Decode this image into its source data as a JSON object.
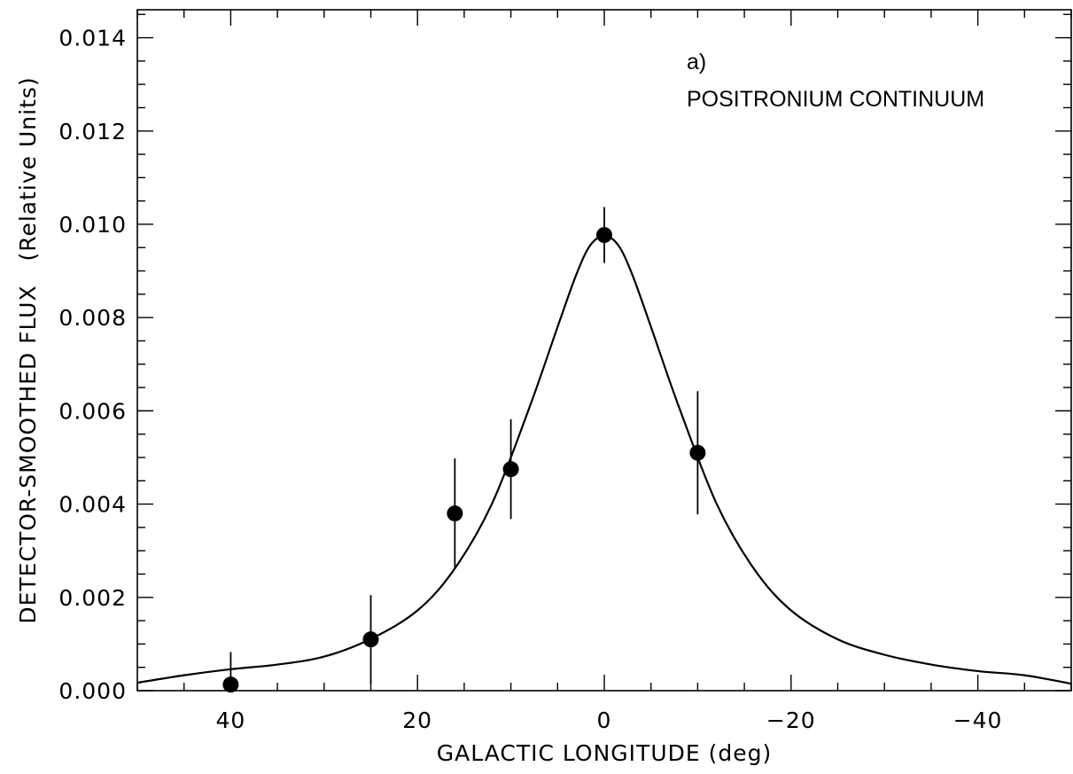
{
  "chart_data": {
    "type": "scatter",
    "panel_label": "a)",
    "title": "POSITRONIUM CONTINUUM",
    "xlabel": "GALACTIC LONGITUDE (deg)",
    "ylabel": "DETECTOR-SMOOTHED FLUX   (Relative Units)",
    "xlim": [
      50,
      -50
    ],
    "ylim": [
      0,
      0.0146
    ],
    "x_ticks": [
      40,
      20,
      0,
      -20,
      -40
    ],
    "x_tick_labels": [
      "40",
      "20",
      "0",
      "−20",
      "−40"
    ],
    "x_minor_step": 5,
    "y_ticks": [
      0.0,
      0.002,
      0.004,
      0.006,
      0.008,
      0.01,
      0.012,
      0.014
    ],
    "y_tick_labels": [
      "0.000",
      "0.002",
      "0.004",
      "0.006",
      "0.008",
      "0.010",
      "0.012",
      "0.014"
    ],
    "y_minor_step": 0.0005,
    "grid": false,
    "legend": "none",
    "series": [
      {
        "type": "errorbar",
        "x": [
          40,
          25,
          16,
          10,
          0,
          -10
        ],
        "y": [
          0.00013,
          0.0011,
          0.0038,
          0.00475,
          0.00977,
          0.0051
        ],
        "yerr": [
          0.0007,
          0.00095,
          0.00118,
          0.00107,
          0.0006,
          0.00132
        ]
      },
      {
        "type": "line",
        "x": [
          50,
          45,
          40,
          35,
          30,
          25,
          20,
          16,
          12,
          8,
          5,
          3,
          1.5,
          0,
          -1.5,
          -3,
          -5,
          -8,
          -12,
          -16,
          -20,
          -25,
          -30,
          -35,
          -40,
          -45,
          -50
        ],
        "y": [
          0.00017,
          0.00033,
          0.00046,
          0.00056,
          0.00073,
          0.00111,
          0.00172,
          0.00262,
          0.00402,
          0.00608,
          0.0078,
          0.00892,
          0.00955,
          0.00975,
          0.00955,
          0.00892,
          0.0078,
          0.00608,
          0.00402,
          0.00262,
          0.00172,
          0.0011,
          0.00077,
          0.00056,
          0.00042,
          0.00033,
          0.00015
        ]
      }
    ]
  }
}
